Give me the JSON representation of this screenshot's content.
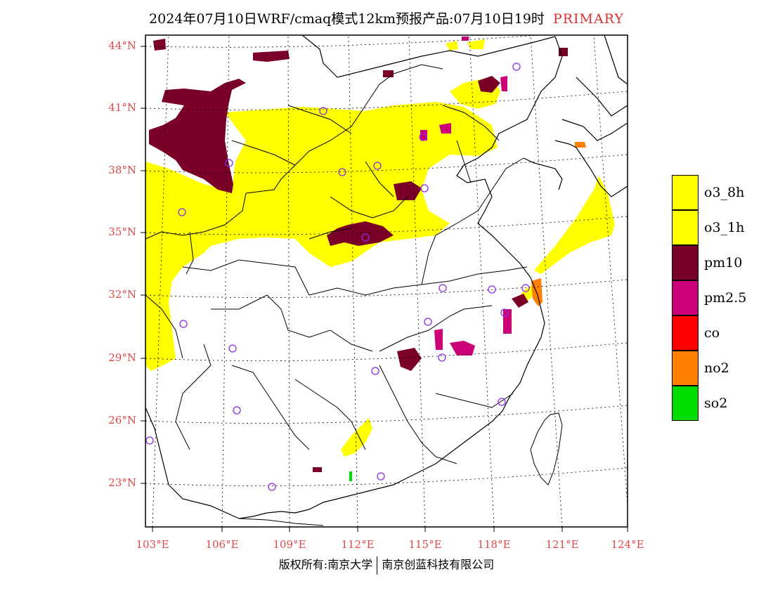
{
  "title": {
    "main": "2024年07月10日WRF/cmaq模式12km预报产品:07月10日19时",
    "tag": "PRIMARY"
  },
  "map": {
    "lat_labels": [
      "44°N",
      "41°N",
      "38°N",
      "35°N",
      "32°N",
      "29°N",
      "26°N",
      "23°N"
    ],
    "lon_labels": [
      "103°E",
      "106°E",
      "109°E",
      "112°E",
      "115°E",
      "118°E",
      "121°E",
      "124°E"
    ],
    "colors": {
      "o3_8h": "#ffff00",
      "o3_1h": "#ffff00",
      "pm10": "#7a0028",
      "pm25": "#cc0077",
      "co": "#ff0000",
      "no2": "#ff7f00",
      "so2": "#00dd00",
      "station": "#8a2be2",
      "border": "#000000",
      "grid": "#000000"
    }
  },
  "legend": [
    {
      "label": "o3_8h",
      "color": "#ffff00"
    },
    {
      "label": "o3_1h",
      "color": "#ffff00"
    },
    {
      "label": "pm10",
      "color": "#7a0028"
    },
    {
      "label": "pm2.5",
      "color": "#cc0077"
    },
    {
      "label": "co",
      "color": "#ff0000"
    },
    {
      "label": "no2",
      "color": "#ff7f00"
    },
    {
      "label": "so2",
      "color": "#00dd00"
    }
  ],
  "footer": {
    "left": "版权所有:南京大学",
    "right": "南京创蓝科技有限公司"
  }
}
